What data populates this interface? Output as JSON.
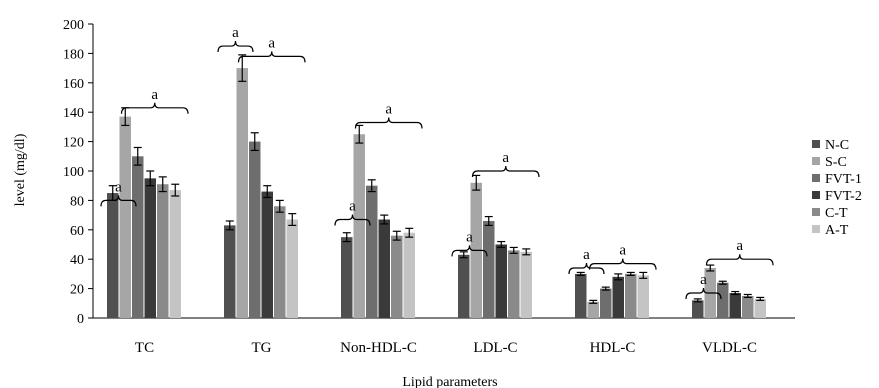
{
  "chart_data": {
    "type": "bar",
    "title": "",
    "xlabel": "Lipid parameters",
    "ylabel": "level (mg/dl)",
    "ylim": [
      0,
      200
    ],
    "yticks": [
      0,
      20,
      40,
      60,
      80,
      100,
      120,
      140,
      160,
      180,
      200
    ],
    "categories": [
      "TC",
      "TG",
      "Non-HDL-C",
      "LDL-C",
      "HDL-C",
      "VLDL-C"
    ],
    "series": [
      {
        "name": "N-C",
        "color": "#505050",
        "values": [
          85,
          63,
          55,
          43,
          30,
          12
        ],
        "errors": [
          5,
          3,
          3,
          2,
          1,
          1
        ]
      },
      {
        "name": "S-C",
        "color": "#a6a6a6",
        "values": [
          137,
          170,
          125,
          92,
          11,
          34
        ],
        "errors": [
          6,
          9,
          6,
          5,
          1,
          2
        ]
      },
      {
        "name": "FVT-1",
        "color": "#6e6e6e",
        "values": [
          110,
          120,
          90,
          66,
          20,
          24
        ],
        "errors": [
          6,
          6,
          4,
          3,
          1,
          1
        ]
      },
      {
        "name": "FVT-2",
        "color": "#3a3a3a",
        "values": [
          95,
          86,
          67,
          50,
          28,
          17
        ],
        "errors": [
          5,
          4,
          3,
          2,
          2,
          1
        ]
      },
      {
        "name": "C-T",
        "color": "#8a8a8a",
        "values": [
          91,
          76,
          56,
          46,
          30,
          15
        ],
        "errors": [
          5,
          4,
          3,
          2,
          1,
          1
        ]
      },
      {
        "name": "A-T",
        "color": "#c4c4c4",
        "values": [
          87,
          67,
          58,
          45,
          29,
          13
        ],
        "errors": [
          4,
          4,
          3,
          2,
          2,
          1
        ]
      }
    ],
    "annotations": [
      {
        "category": "TC",
        "label": "a",
        "bracket_a": 80,
        "bracket_b": 143
      },
      {
        "category": "TG",
        "label": "a",
        "bracket_a": 185,
        "bracket_b": 178
      },
      {
        "category": "Non-HDL-C",
        "label": "a",
        "bracket_a": 67,
        "bracket_b": 133
      },
      {
        "category": "LDL-C",
        "label": "a",
        "bracket_a": 46,
        "bracket_b": 100
      },
      {
        "category": "HDL-C",
        "label": "a",
        "bracket_a": 34,
        "bracket_b": 37
      },
      {
        "category": "VLDL-C",
        "label": "a",
        "bracket_a": 17,
        "bracket_b": 40
      }
    ],
    "legend_position": "right",
    "grid": false
  }
}
